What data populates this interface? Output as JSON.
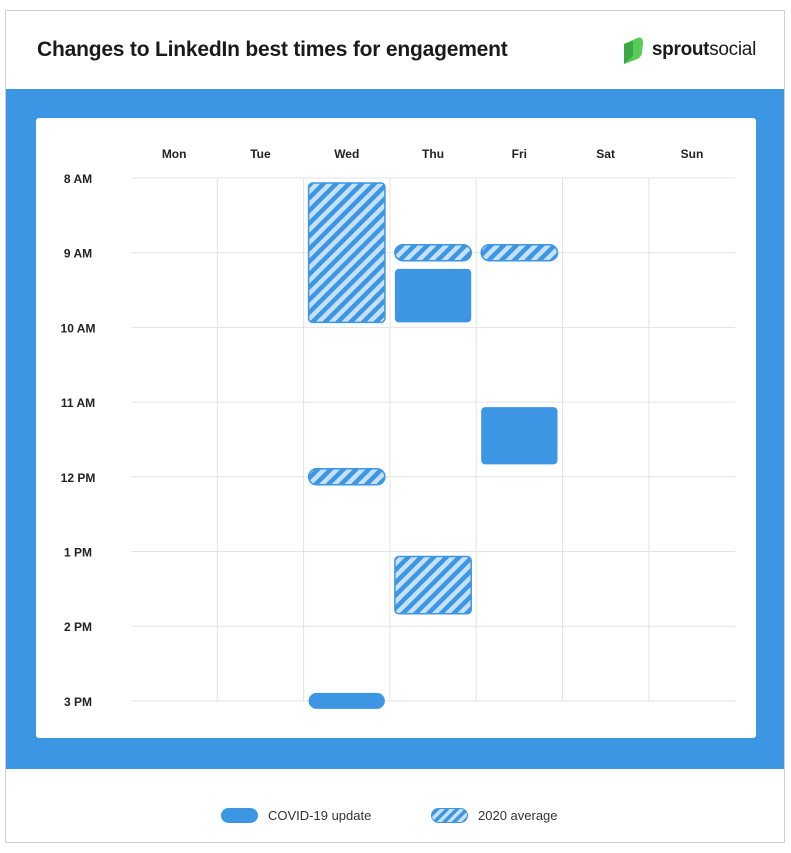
{
  "title": "Changes to LinkedIn best times for engagement",
  "brand": {
    "name_bold": "sprout",
    "name_regular": "social",
    "icon": "sprout-leaf-icon"
  },
  "colors": {
    "band": "#3c96e3",
    "covid": "#3c96e3",
    "stripe_light": "#ffffff",
    "stripe_dark": "#3c96e3",
    "grid": "#e3e3e3",
    "brand_green": "#59cb59"
  },
  "chart_data": {
    "type": "heatmap",
    "days": [
      "Mon",
      "Tue",
      "Wed",
      "Thu",
      "Fri",
      "Sat",
      "Sun"
    ],
    "times": [
      "8 AM",
      "9 AM",
      "10 AM",
      "11 AM",
      "12 PM",
      "1 PM",
      "2 PM",
      "3 PM"
    ],
    "series": [
      {
        "name": "COVID-19 update",
        "pattern": "solid",
        "blocks": [
          {
            "day": "Thu",
            "start": 9.15,
            "end": 10.0
          },
          {
            "day": "Fri",
            "start": 11.0,
            "end": 11.9
          },
          {
            "day": "Wed",
            "start": 15.0,
            "end": 15.1
          }
        ]
      },
      {
        "name": "2020 average",
        "pattern": "striped",
        "blocks": [
          {
            "day": "Wed",
            "start": 8.0,
            "end": 10.0
          },
          {
            "day": "Thu",
            "start": 9.0,
            "end": 9.1
          },
          {
            "day": "Fri",
            "start": 9.0,
            "end": 9.1
          },
          {
            "day": "Wed",
            "start": 12.0,
            "end": 12.1
          },
          {
            "day": "Thu",
            "start": 13.0,
            "end": 13.9
          }
        ]
      }
    ],
    "grid": true,
    "legend_position": "bottom"
  },
  "legend": [
    {
      "label": "COVID-19 update",
      "pattern": "solid"
    },
    {
      "label": "2020 average",
      "pattern": "striped"
    }
  ]
}
